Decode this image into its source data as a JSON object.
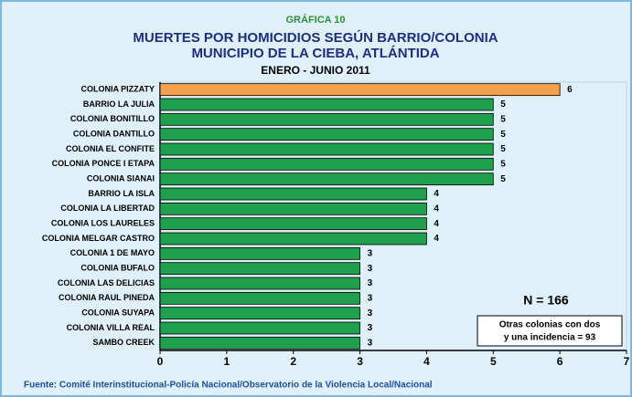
{
  "chart_data": {
    "type": "barh",
    "supertitle": "GRÁFICA 10",
    "title": [
      "MUERTES POR HOMICIDIOS SEGÚN BARRIO/COLONIA",
      "MUNICIPIO DE LA CIEBA, ATLÁNTIDA"
    ],
    "subtitle": "ENERO - JUNIO 2011",
    "categories": [
      "COLONIA PIZZATY",
      "BARRIO LA JULIA",
      "COLONIA BONITILLO",
      "COLONIA DANTILLO",
      "COLONIA EL CONFITE",
      "COLONIA PONCE I ETAPA",
      "COLONIA SIANAI",
      "BARRIO LA ISLA",
      "COLONIA LA LIBERTAD",
      "COLONIA LOS LAURELES",
      "COLONIA MELGAR CASTRO",
      "COLONIA 1 DE MAYO",
      "COLONIA BUFALO",
      "COLONIA LAS DELICIAS",
      "COLONIA RAUL PINEDA",
      "COLONIA SUYAPA",
      "COLONIA VILLA REAL",
      "SAMBO CREEK"
    ],
    "values": [
      6,
      5,
      5,
      5,
      5,
      5,
      5,
      4,
      4,
      4,
      4,
      3,
      3,
      3,
      3,
      3,
      3,
      3
    ],
    "colors": [
      "#f5a04a",
      "#1fa04f",
      "#1fa04f",
      "#1fa04f",
      "#1fa04f",
      "#1fa04f",
      "#1fa04f",
      "#1fa04f",
      "#1fa04f",
      "#1fa04f",
      "#1fa04f",
      "#1fa04f",
      "#1fa04f",
      "#1fa04f",
      "#1fa04f",
      "#1fa04f",
      "#1fa04f",
      "#1fa04f"
    ],
    "xlim": [
      0,
      7
    ],
    "xticks": [
      0,
      1,
      2,
      3,
      4,
      5,
      6,
      7
    ],
    "annotations": [
      "N = 166"
    ],
    "note_box": [
      "Otras colonias con dos",
      "y una incidencia = 93"
    ],
    "source": "Fuente: Comité Interinstitucional-Policía Nacional/Observatorio de la Violencia Local/Nacional"
  }
}
